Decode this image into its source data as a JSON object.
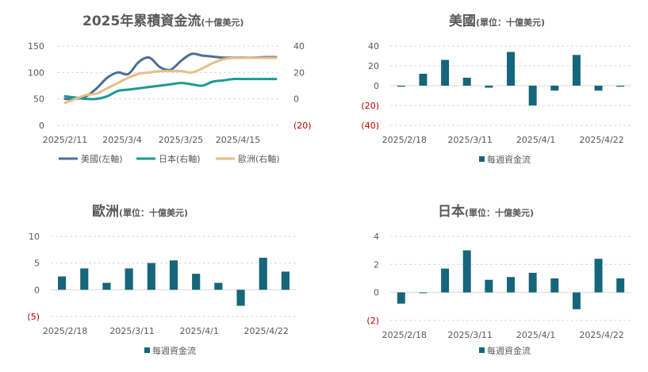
{
  "chart_data": [
    {
      "type": "line",
      "title": "2025年累積資金流",
      "subtitle": "(十億美元)",
      "x_labels": [
        "2025/2/11",
        "2025/3/4",
        "2025/3/25",
        "2025/4/15"
      ],
      "ylim_left": [
        0,
        150
      ],
      "ylim_right": [
        -20,
        40
      ],
      "left_ticks": [
        "0",
        "50",
        "100",
        "150"
      ],
      "right_ticks": [
        "(20)",
        "0",
        "20",
        "40"
      ],
      "series": [
        {
          "name": "美國(左軸)",
          "axis": "left",
          "color": "#4a6f9a",
          "x": [
            0,
            1,
            2,
            3,
            4,
            5,
            6,
            7,
            8,
            9,
            10,
            11,
            12,
            13,
            14,
            15,
            16,
            17,
            18,
            19,
            20
          ],
          "values": [
            50,
            50,
            55,
            70,
            90,
            100,
            97,
            120,
            128,
            110,
            105,
            122,
            135,
            132,
            130,
            128,
            128,
            128,
            128,
            129,
            129
          ]
        },
        {
          "name": "日本(右軸)",
          "axis": "right",
          "color": "#1a9b94",
          "x": [
            0,
            1,
            2,
            3,
            4,
            5,
            6,
            7,
            8,
            9,
            10,
            11,
            12,
            13,
            14,
            15,
            16,
            17,
            18,
            19,
            20
          ],
          "values": [
            2,
            1,
            0,
            0,
            2,
            6,
            7,
            8,
            9,
            10,
            11,
            12,
            11,
            10,
            13,
            14,
            15,
            15,
            15,
            15,
            15
          ]
        },
        {
          "name": "歐洲(右軸)",
          "axis": "right",
          "color": "#e8be86",
          "x": [
            0,
            1,
            2,
            3,
            4,
            5,
            6,
            7,
            8,
            9,
            10,
            11,
            12,
            13,
            14,
            15,
            16,
            17,
            18,
            19,
            20
          ],
          "values": [
            -3,
            0,
            3,
            4,
            8,
            12,
            16,
            19,
            20,
            21,
            21,
            21,
            20,
            23,
            27,
            30,
            31,
            31,
            31,
            31,
            31
          ]
        }
      ],
      "legend_position": "bottom"
    },
    {
      "type": "bar",
      "title": "美國",
      "subtitle": "(單位：十億美元)",
      "x_labels": [
        "2025/2/18",
        "2025/3/11",
        "2025/4/1",
        "2025/4/22"
      ],
      "ylim": [
        -40,
        40
      ],
      "y_ticks": [
        "(40)",
        "(20)",
        "0",
        "20",
        "40"
      ],
      "series": [
        {
          "name": "每週資金流",
          "color": "#15667a",
          "values": [
            -1,
            12,
            26,
            8,
            -2,
            34,
            -20,
            -5,
            31,
            -5,
            -1
          ]
        }
      ],
      "legend_position": "bottom"
    },
    {
      "type": "bar",
      "title": "歐洲",
      "subtitle": "(單位：十億美元)",
      "x_labels": [
        "2025/2/18",
        "2025/3/11",
        "2025/4/1",
        "2025/4/22"
      ],
      "ylim": [
        -5,
        10
      ],
      "y_ticks": [
        "(5)",
        "0",
        "5",
        "10"
      ],
      "series": [
        {
          "name": "每週資金流",
          "color": "#15667a",
          "values": [
            2.5,
            4,
            1.3,
            4,
            5,
            5.5,
            3,
            1.3,
            -3,
            6,
            3.4
          ]
        }
      ],
      "legend_position": "bottom"
    },
    {
      "type": "bar",
      "title": "日本",
      "subtitle": "(單位：十億美元)",
      "x_labels": [
        "2025/2/18",
        "2025/3/11",
        "2025/4/1",
        "2025/4/22"
      ],
      "ylim": [
        -2,
        4
      ],
      "y_ticks": [
        "(2)",
        "0",
        "2",
        "4"
      ],
      "series": [
        {
          "name": "每週資金流",
          "color": "#15667a",
          "values": [
            -0.8,
            0,
            1.7,
            3,
            0.9,
            1.1,
            1.4,
            1,
            -1.2,
            2.4,
            1
          ]
        }
      ],
      "legend_position": "bottom"
    }
  ]
}
